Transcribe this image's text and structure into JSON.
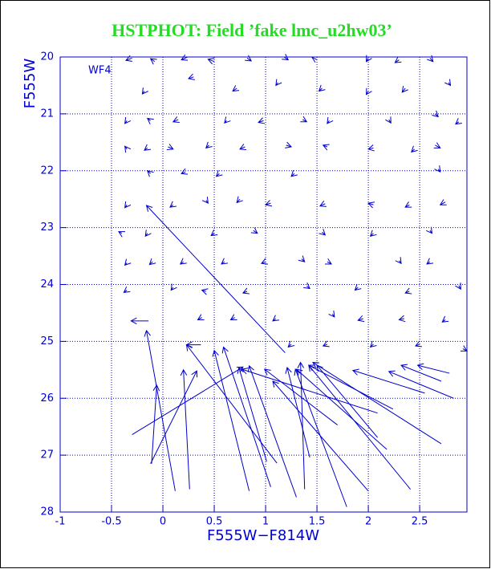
{
  "chart_data": {
    "type": "quiver",
    "title": "HSTPHOT: Field ’fake lmc_u2hw03’",
    "xlabel": "F555W−F814W",
    "ylabel": "F555W",
    "annotation": "WF4",
    "color": "#0000cc",
    "grid": true,
    "xlim": [
      -1,
      2.96
    ],
    "ylim": [
      20,
      28
    ],
    "y_inverted": true,
    "xticks": [
      -1,
      -0.5,
      0,
      0.5,
      1,
      1.5,
      2,
      2.5
    ],
    "yticks": [
      20,
      21,
      22,
      23,
      24,
      25,
      26,
      27,
      28
    ],
    "arrows": [
      [
        1.19,
        25.2,
        -0.16,
        22.61
      ],
      [
        0.12,
        27.63,
        -0.16,
        24.81
      ],
      [
        -0.11,
        27.15,
        -0.06,
        25.77
      ],
      [
        0.26,
        27.6,
        0.2,
        25.5
      ],
      [
        -0.12,
        27.15,
        0.33,
        25.52
      ],
      [
        -0.3,
        26.64,
        0.78,
        25.45
      ],
      [
        0.84,
        27.63,
        0.5,
        25.16
      ],
      [
        1.11,
        27.14,
        0.23,
        25.06
      ],
      [
        1.05,
        27.56,
        0.59,
        25.1
      ],
      [
        1.01,
        27.11,
        0.74,
        25.46
      ],
      [
        1.3,
        27.74,
        0.84,
        25.43
      ],
      [
        1.38,
        27.6,
        1.34,
        25.37
      ],
      [
        1.43,
        27.04,
        1.21,
        25.46
      ],
      [
        1.79,
        27.91,
        1.29,
        25.49
      ],
      [
        2.0,
        27.63,
        1.07,
        25.7
      ],
      [
        1.7,
        26.47,
        0.99,
        25.49
      ],
      [
        2.41,
        27.6,
        1.42,
        25.42
      ],
      [
        2.18,
        26.9,
        1.3,
        25.49
      ],
      [
        2.09,
        26.69,
        1.5,
        25.42
      ],
      [
        2.71,
        26.8,
        1.46,
        25.37
      ],
      [
        2.24,
        26.19,
        1.42,
        25.42
      ],
      [
        2.09,
        26.26,
        0.77,
        25.49
      ],
      [
        2.83,
        26.0,
        2.2,
        25.53
      ],
      [
        2.55,
        25.91,
        1.85,
        25.51
      ],
      [
        2.71,
        25.7,
        2.32,
        25.42
      ],
      [
        2.79,
        25.56,
        2.48,
        25.42
      ],
      [
        -0.14,
        24.64,
        -0.31,
        24.64
      ],
      [
        0.37,
        25.06,
        0.23,
        25.06
      ],
      [
        -0.3,
        20.02,
        -0.36,
        20.06
      ],
      [
        -0.08,
        20.08,
        -0.12,
        20.03
      ],
      [
        0.24,
        20.0,
        0.18,
        20.05
      ],
      [
        0.5,
        20.08,
        0.44,
        20.04
      ],
      [
        0.82,
        20.02,
        0.86,
        20.07
      ],
      [
        1.18,
        20.0,
        1.22,
        20.05
      ],
      [
        1.5,
        20.05,
        1.45,
        20.0
      ],
      [
        2.0,
        20.02,
        1.98,
        20.08
      ],
      [
        2.3,
        20.05,
        2.26,
        20.1
      ],
      [
        2.6,
        20.02,
        2.63,
        20.08
      ],
      [
        -0.18,
        20.6,
        -0.2,
        20.65
      ],
      [
        0.72,
        20.55,
        0.68,
        20.6
      ],
      [
        1.12,
        20.45,
        1.1,
        20.5
      ],
      [
        1.55,
        20.55,
        1.52,
        20.6
      ],
      [
        2.0,
        20.6,
        1.98,
        20.66
      ],
      [
        2.36,
        20.55,
        2.33,
        20.62
      ],
      [
        2.78,
        20.45,
        2.8,
        20.5
      ],
      [
        0.3,
        20.35,
        0.25,
        20.38
      ],
      [
        -0.35,
        21.12,
        -0.37,
        21.17
      ],
      [
        -0.12,
        21.12,
        -0.15,
        21.08
      ],
      [
        0.15,
        21.1,
        0.1,
        21.14
      ],
      [
        0.62,
        21.12,
        0.6,
        21.16
      ],
      [
        0.98,
        21.12,
        0.93,
        21.15
      ],
      [
        1.36,
        21.1,
        1.4,
        21.14
      ],
      [
        1.62,
        21.12,
        1.6,
        21.17
      ],
      [
        2.2,
        21.1,
        2.22,
        21.16
      ],
      [
        2.65,
        21.0,
        2.68,
        21.05
      ],
      [
        2.88,
        21.14,
        2.85,
        21.18
      ],
      [
        -0.35,
        21.62,
        -0.37,
        21.57
      ],
      [
        -0.15,
        21.6,
        -0.18,
        21.64
      ],
      [
        0.05,
        21.58,
        0.1,
        21.62
      ],
      [
        0.45,
        21.55,
        0.42,
        21.6
      ],
      [
        0.8,
        21.58,
        0.75,
        21.62
      ],
      [
        1.2,
        21.55,
        1.25,
        21.58
      ],
      [
        1.6,
        21.58,
        1.56,
        21.55
      ],
      [
        2.05,
        21.6,
        2.0,
        21.62
      ],
      [
        2.45,
        21.62,
        2.42,
        21.67
      ],
      [
        2.65,
        21.55,
        2.7,
        21.6
      ],
      [
        -0.12,
        22.05,
        -0.15,
        22.0
      ],
      [
        0.22,
        22.02,
        0.18,
        22.05
      ],
      [
        0.55,
        22.05,
        0.52,
        22.1
      ],
      [
        1.28,
        22.05,
        1.25,
        22.1
      ],
      [
        2.68,
        21.97,
        2.7,
        22.02
      ],
      [
        -0.35,
        22.6,
        -0.37,
        22.65
      ],
      [
        0.1,
        22.6,
        0.07,
        22.64
      ],
      [
        0.42,
        22.52,
        0.44,
        22.57
      ],
      [
        0.75,
        22.5,
        0.72,
        22.56
      ],
      [
        1.05,
        22.57,
        1.0,
        22.6
      ],
      [
        1.58,
        22.58,
        1.53,
        22.62
      ],
      [
        2.05,
        22.6,
        2.0,
        22.57
      ],
      [
        2.4,
        22.6,
        2.36,
        22.64
      ],
      [
        2.75,
        22.55,
        2.7,
        22.6
      ],
      [
        -0.4,
        23.1,
        -0.43,
        23.07
      ],
      [
        -0.15,
        23.1,
        -0.17,
        23.15
      ],
      [
        0.5,
        23.1,
        0.47,
        23.14
      ],
      [
        0.88,
        23.05,
        0.92,
        23.1
      ],
      [
        1.55,
        23.08,
        1.58,
        23.13
      ],
      [
        2.05,
        23.1,
        2.02,
        23.15
      ],
      [
        2.6,
        23.05,
        2.62,
        23.1
      ],
      [
        -0.35,
        23.62,
        -0.37,
        23.66
      ],
      [
        -0.1,
        23.6,
        -0.13,
        23.65
      ],
      [
        0.2,
        23.6,
        0.17,
        23.64
      ],
      [
        0.6,
        23.6,
        0.57,
        23.64
      ],
      [
        1.0,
        23.6,
        0.96,
        23.63
      ],
      [
        1.35,
        23.55,
        1.38,
        23.6
      ],
      [
        1.6,
        23.6,
        1.64,
        23.64
      ],
      [
        2.3,
        23.58,
        2.32,
        23.63
      ],
      [
        2.6,
        23.6,
        2.57,
        23.64
      ],
      [
        -0.35,
        24.1,
        -0.38,
        24.14
      ],
      [
        0.1,
        24.05,
        0.08,
        24.1
      ],
      [
        0.42,
        24.12,
        0.38,
        24.1
      ],
      [
        0.82,
        24.12,
        0.78,
        24.15
      ],
      [
        1.4,
        24.03,
        1.43,
        24.07
      ],
      [
        1.9,
        24.05,
        1.87,
        24.1
      ],
      [
        2.4,
        24.12,
        2.36,
        24.15
      ],
      [
        2.88,
        24.02,
        2.9,
        24.08
      ],
      [
        0.38,
        24.58,
        0.34,
        24.62
      ],
      [
        0.7,
        24.58,
        0.66,
        24.62
      ],
      [
        1.1,
        24.6,
        1.07,
        24.64
      ],
      [
        1.65,
        24.52,
        1.67,
        24.57
      ],
      [
        1.95,
        24.6,
        1.9,
        24.63
      ],
      [
        2.35,
        24.6,
        2.3,
        24.62
      ],
      [
        2.75,
        24.62,
        2.72,
        24.66
      ],
      [
        1.25,
        25.05,
        1.22,
        25.1
      ],
      [
        1.6,
        25.05,
        1.56,
        25.08
      ],
      [
        2.05,
        25.05,
        2.02,
        25.1
      ],
      [
        2.5,
        25.05,
        2.46,
        25.08
      ],
      [
        2.92,
        25.13,
        2.96,
        25.17
      ]
    ]
  }
}
